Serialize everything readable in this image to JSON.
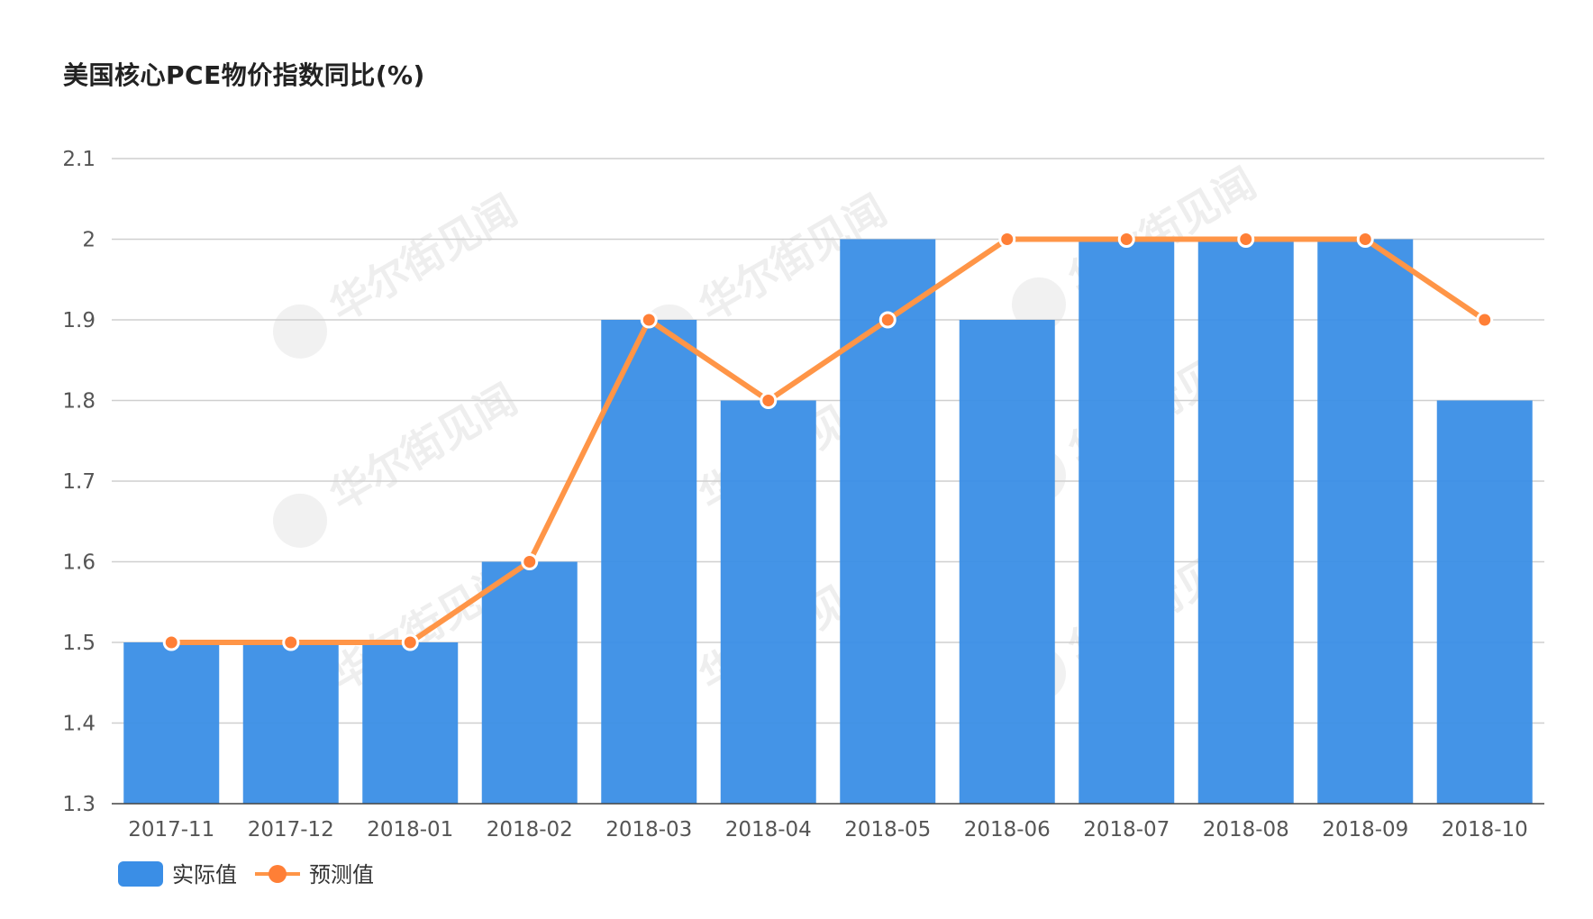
{
  "title": "美国核心PCE物价指数同比(%)",
  "watermark_text": "华尔街见闻",
  "chart_data": {
    "type": "bar",
    "title": "美国核心PCE物价指数同比(%)",
    "xlabel": "",
    "ylabel": "",
    "categories": [
      "2017-11",
      "2017-12",
      "2018-01",
      "2018-02",
      "2018-03",
      "2018-04",
      "2018-05",
      "2018-06",
      "2018-07",
      "2018-08",
      "2018-09",
      "2018-10"
    ],
    "yticks": [
      "1.3",
      "1.4",
      "1.5",
      "1.6",
      "1.7",
      "1.8",
      "1.9",
      "2",
      "2.1"
    ],
    "ylim": [
      1.3,
      2.1
    ],
    "grid": true,
    "legend_position": "bottom-left",
    "series": [
      {
        "name": "实际值",
        "type": "bar",
        "color": "#3a8ee6",
        "values": [
          1.5,
          1.5,
          1.5,
          1.6,
          1.9,
          1.8,
          2.0,
          1.9,
          2.0,
          2.0,
          2.0,
          1.8
        ]
      },
      {
        "name": "预测值",
        "type": "line",
        "color": "#ff9547",
        "marker_color": "#ff7f36",
        "values": [
          1.5,
          1.5,
          1.5,
          1.6,
          1.9,
          1.8,
          1.9,
          2.0,
          2.0,
          2.0,
          2.0,
          1.9
        ]
      }
    ]
  }
}
